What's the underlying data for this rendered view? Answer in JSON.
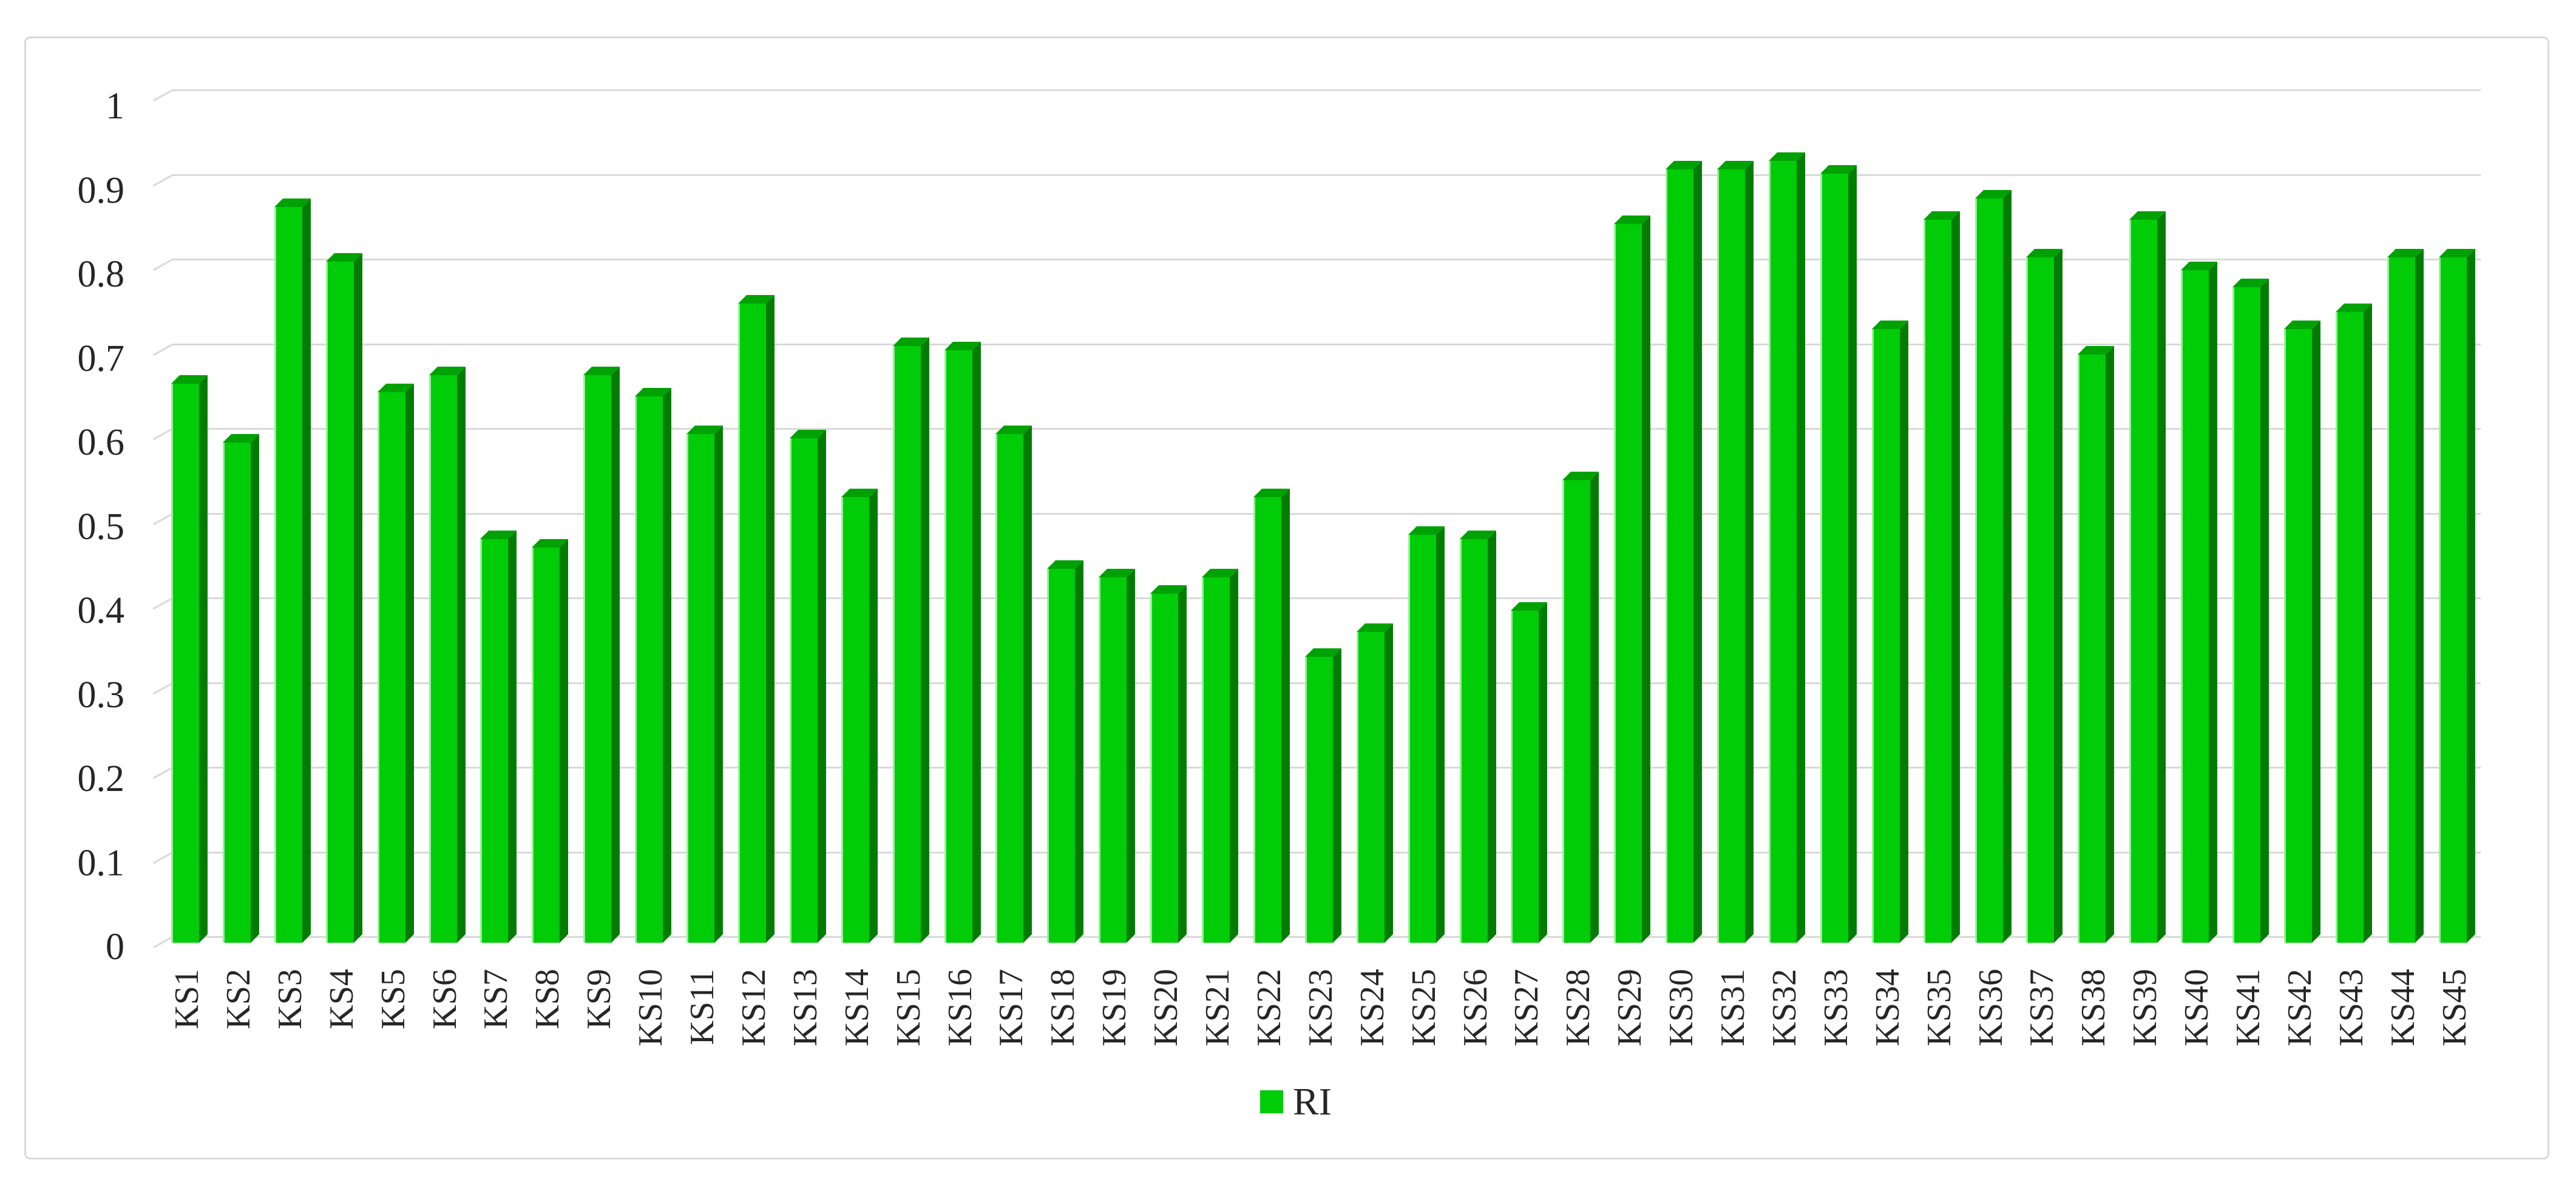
{
  "chart_data": {
    "type": "bar",
    "title": "",
    "xlabel": "",
    "ylabel": "",
    "categories": [
      "KS1",
      "KS2",
      "KS3",
      "KS4",
      "KS5",
      "KS6",
      "KS7",
      "KS8",
      "KS9",
      "KS10",
      "KS11",
      "KS12",
      "KS13",
      "KS14",
      "KS15",
      "KS16",
      "KS17",
      "KS18",
      "KS19",
      "KS20",
      "KS21",
      "KS22",
      "KS23",
      "KS24",
      "KS25",
      "KS26",
      "KS27",
      "KS28",
      "KS29",
      "KS30",
      "KS31",
      "KS32",
      "KS33",
      "KS34",
      "KS35",
      "KS36",
      "KS37",
      "KS38",
      "KS39",
      "KS40",
      "KS41",
      "KS42",
      "KS43",
      "KS44",
      "KS45"
    ],
    "series": [
      {
        "name": "RI",
        "values": [
          0.665,
          0.595,
          0.875,
          0.81,
          0.655,
          0.675,
          0.48,
          0.47,
          0.675,
          0.65,
          0.605,
          0.76,
          0.6,
          0.53,
          0.71,
          0.705,
          0.605,
          0.445,
          0.435,
          0.415,
          0.435,
          0.53,
          0.34,
          0.37,
          0.485,
          0.48,
          0.395,
          0.55,
          0.855,
          0.92,
          0.92,
          0.93,
          0.915,
          0.73,
          0.86,
          0.885,
          0.815,
          0.7,
          0.86,
          0.8,
          0.78,
          0.73,
          0.75,
          0.815,
          0.815
        ]
      }
    ],
    "ylim": [
      0,
      1
    ],
    "yticks": [
      0,
      0.1,
      0.2,
      0.3,
      0.4,
      0.5,
      0.6,
      0.7,
      0.8,
      0.9,
      1
    ],
    "ytick_labels": [
      "0",
      "0.1",
      "0.2",
      "0.3",
      "0.4",
      "0.5",
      "0.6",
      "0.7",
      "0.8",
      "0.9",
      "1"
    ],
    "grid": true,
    "legend_position": "bottom-center",
    "style": "3d-bar"
  },
  "legend": {
    "label": "RI"
  },
  "colors": {
    "bar_front": "#00cc07",
    "bar_side": "#007c01",
    "bar_top": "#00a104",
    "bar_highlight": "#9bef9b",
    "gridline": "#d9d9d9",
    "frame_border": "#d9d9d9",
    "text": "#262626",
    "background": "#ffffff"
  }
}
